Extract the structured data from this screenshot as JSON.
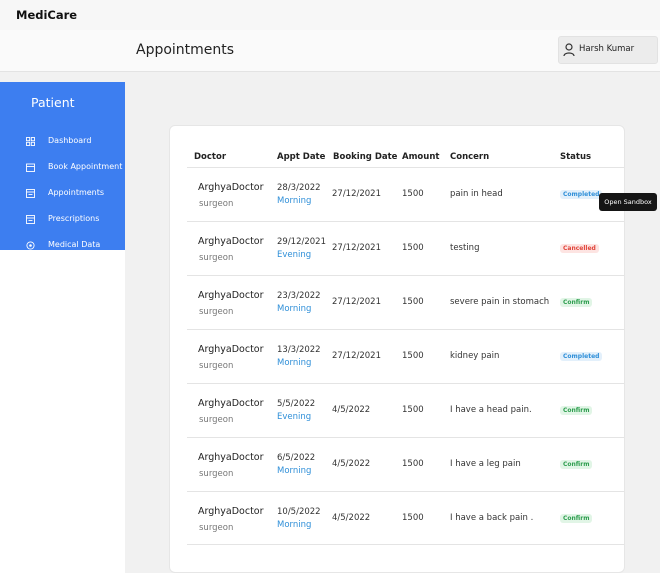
{
  "app": {
    "brand": "MediCare"
  },
  "header": {
    "page_title": "Appointments",
    "user_name": "Harsh Kumar"
  },
  "sidebar": {
    "title": "Patient",
    "items": [
      {
        "label": "Dashboard",
        "icon": "grid-icon"
      },
      {
        "label": "Book Appointment",
        "icon": "calendar-icon"
      },
      {
        "label": "Appointments",
        "icon": "list-icon"
      },
      {
        "label": "Prescriptions",
        "icon": "document-icon"
      },
      {
        "label": "Medical Data",
        "icon": "settings-icon"
      }
    ]
  },
  "table": {
    "headers": [
      "Doctor",
      "Appt Date",
      "Booking Date",
      "Amount",
      "Concern",
      "Status"
    ],
    "rows": [
      {
        "doctor": "ArghyaDoctor",
        "specialty": "surgeon",
        "appt_date": "28/3/2022",
        "shift": "Morning",
        "booking_date": "27/12/2021",
        "amount": "1500",
        "concern": "pain in head",
        "status": "Completed"
      },
      {
        "doctor": "ArghyaDoctor",
        "specialty": "surgeon",
        "appt_date": "29/12/2021",
        "shift": "Evening",
        "booking_date": "27/12/2021",
        "amount": "1500",
        "concern": "testing",
        "status": "Cancelled"
      },
      {
        "doctor": "ArghyaDoctor",
        "specialty": "surgeon",
        "appt_date": "23/3/2022",
        "shift": "Morning",
        "booking_date": "27/12/2021",
        "amount": "1500",
        "concern": "severe pain in stomach",
        "status": "Confirm"
      },
      {
        "doctor": "ArghyaDoctor",
        "specialty": "surgeon",
        "appt_date": "13/3/2022",
        "shift": "Morning",
        "booking_date": "27/12/2021",
        "amount": "1500",
        "concern": "kidney pain",
        "status": "Completed"
      },
      {
        "doctor": "ArghyaDoctor",
        "specialty": "surgeon",
        "appt_date": "5/5/2022",
        "shift": "Evening",
        "booking_date": "4/5/2022",
        "amount": "1500",
        "concern": "I have a head pain.",
        "status": "Confirm"
      },
      {
        "doctor": "ArghyaDoctor",
        "specialty": "surgeon",
        "appt_date": "6/5/2022",
        "shift": "Morning",
        "booking_date": "4/5/2022",
        "amount": "1500",
        "concern": "I have a leg pain",
        "status": "Confirm"
      },
      {
        "doctor": "ArghyaDoctor",
        "specialty": "surgeon",
        "appt_date": "10/5/2022",
        "shift": "Morning",
        "booking_date": "4/5/2022",
        "amount": "1500",
        "concern": "I have a back pain .",
        "status": "Confirm"
      }
    ]
  },
  "tooltip": {
    "text": "Open Sandbox"
  },
  "colors": {
    "sidebar_bg": "#3d7ef0",
    "shift_text": "#2f8fd8",
    "status_completed": "#2f8fd8",
    "status_cancelled": "#e0443a",
    "status_confirm": "#2e9e4f"
  }
}
